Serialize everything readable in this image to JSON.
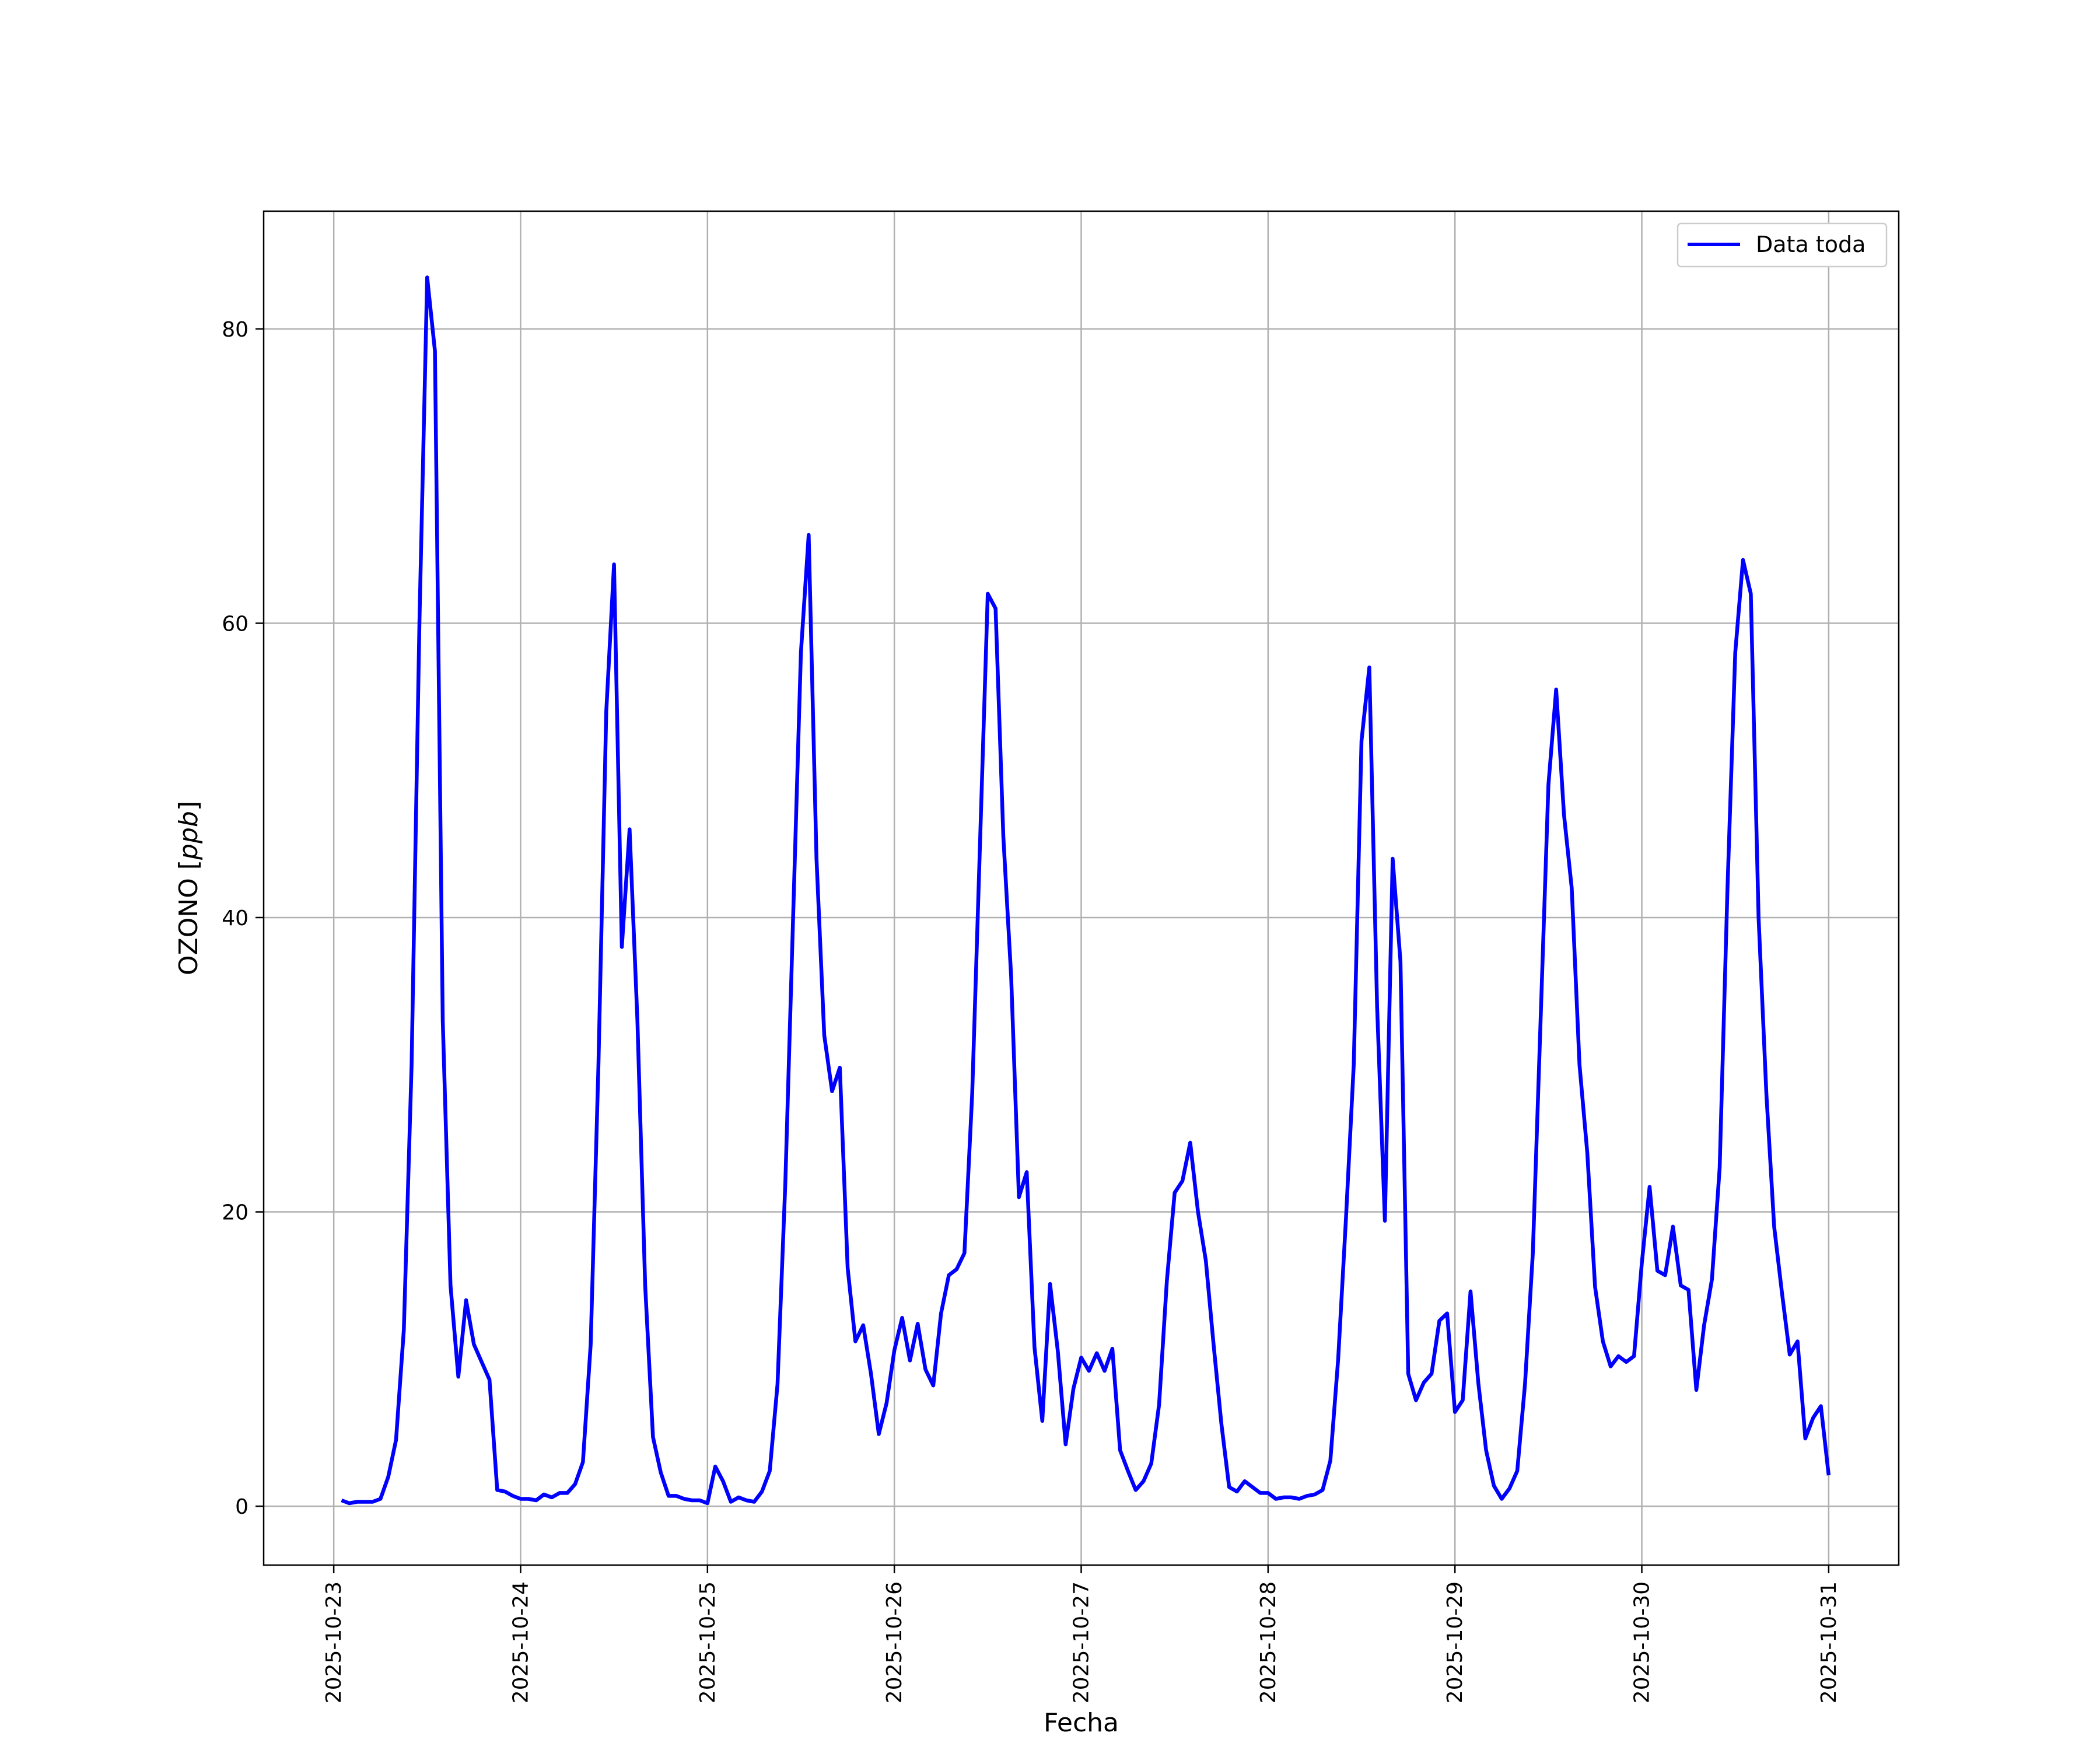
{
  "chart_data": {
    "type": "line",
    "title": "",
    "xlabel": "Fecha",
    "ylabel_text": "OZONO [",
    "ylabel_unit": "ppb",
    "ylabel_close": "]",
    "x_start": "2025-10-23 00:00",
    "x_step": "1 hour",
    "xlim": [
      "2025-10-22 15:00",
      "2025-10-31 09:00"
    ],
    "ylim": [
      -4,
      88
    ],
    "xticks": [
      "2025-10-23",
      "2025-10-24",
      "2025-10-25",
      "2025-10-26",
      "2025-10-27",
      "2025-10-28",
      "2025-10-29",
      "2025-10-30",
      "2025-10-31"
    ],
    "yticks": [
      0,
      20,
      40,
      60,
      80
    ],
    "grid": true,
    "legend_position": "top-right",
    "colors": {
      "series": "#0000ff"
    },
    "series": [
      {
        "name": "Data toda",
        "x_start_hour": 1,
        "values": [
          0.4,
          0.2,
          0.3,
          0.3,
          0.3,
          0.5,
          2.0,
          4.5,
          12.0,
          30.0,
          60.0,
          83.5,
          78.5,
          33.0,
          15.0,
          8.8,
          14.0,
          11.0,
          9.8,
          8.6,
          1.1,
          1.0,
          0.7,
          0.5,
          0.5,
          0.4,
          0.8,
          0.6,
          0.9,
          0.9,
          1.5,
          3.0,
          11.0,
          30.0,
          54.0,
          64.0,
          38.0,
          46.0,
          33.0,
          15.0,
          4.7,
          2.3,
          0.7,
          0.7,
          0.5,
          0.4,
          0.4,
          0.2,
          2.7,
          1.7,
          0.3,
          0.6,
          0.4,
          0.3,
          1.0,
          2.4,
          8.3,
          22.0,
          40.0,
          58.0,
          66.0,
          44.0,
          32.0,
          28.2,
          29.8,
          16.2,
          11.2,
          12.3,
          9.0,
          4.9,
          7.0,
          10.6,
          12.8,
          9.9,
          12.4,
          9.3,
          8.2,
          13.1,
          15.7,
          16.1,
          17.2,
          28.0,
          45.0,
          62.0,
          61.0,
          45.5,
          36.0,
          21.0,
          22.7,
          10.8,
          5.8,
          15.1,
          10.5,
          4.2,
          8.0,
          10.1,
          9.2,
          10.4,
          9.2,
          10.7,
          3.8,
          2.4,
          1.1,
          1.7,
          2.9,
          6.9,
          15.3,
          21.3,
          22.1,
          24.7,
          20.0,
          16.7,
          11.0,
          5.6,
          1.3,
          1.0,
          1.7,
          1.3,
          0.9,
          0.9,
          0.5,
          0.6,
          0.6,
          0.5,
          0.7,
          0.8,
          1.1,
          3.1,
          10.0,
          19.5,
          30.0,
          52.0,
          57.0,
          34.0,
          19.4,
          44.0,
          37.0,
          9.0,
          7.2,
          8.4,
          9.0,
          12.6,
          13.1,
          6.4,
          7.2,
          14.6,
          8.4,
          3.8,
          1.4,
          0.5,
          1.2,
          2.4,
          8.3,
          17.2,
          33.0,
          49.0,
          55.5,
          47.0,
          42.0,
          30.0,
          24.0,
          14.9,
          11.2,
          9.5,
          10.2,
          9.8,
          10.2,
          16.5,
          21.7,
          16.0,
          15.7,
          19.0,
          15.0,
          14.7,
          7.9,
          12.3,
          15.4,
          23.0,
          42.0,
          58.0,
          64.3,
          62.0,
          40.0,
          28.0,
          19.0,
          14.5,
          10.3,
          11.2,
          4.6,
          6.0,
          6.8,
          2.1
        ]
      }
    ]
  },
  "legend": {
    "label": "Data toda"
  }
}
